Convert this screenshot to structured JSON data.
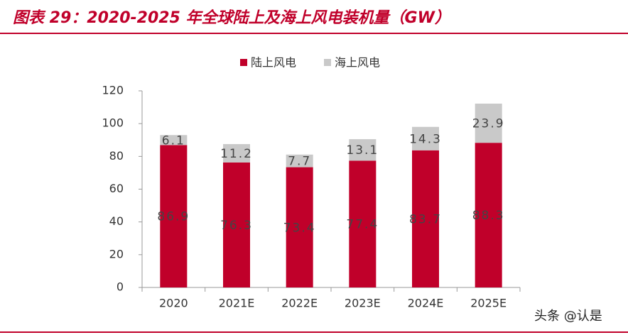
{
  "chart_data": {
    "type": "stacked_bar",
    "title": "图表 29：2020-2025 年全球陆上及海上风电装机量（GW）",
    "categories": [
      "2020",
      "2021E",
      "2022E",
      "2023E",
      "2024E",
      "2025E"
    ],
    "series": [
      {
        "name": "陆上风电",
        "color": "#c0002a",
        "values": [
          86.9,
          76.3,
          73.4,
          77.4,
          83.7,
          88.3
        ]
      },
      {
        "name": "海上风电",
        "color": "#c9c9c9",
        "values": [
          6.1,
          11.2,
          7.7,
          13.1,
          14.3,
          23.9
        ]
      }
    ],
    "ylim": [
      0,
      120
    ],
    "yticks": [
      0,
      20,
      40,
      60,
      80,
      100,
      120
    ],
    "legend": "top",
    "watermark": "头条 @认是"
  }
}
